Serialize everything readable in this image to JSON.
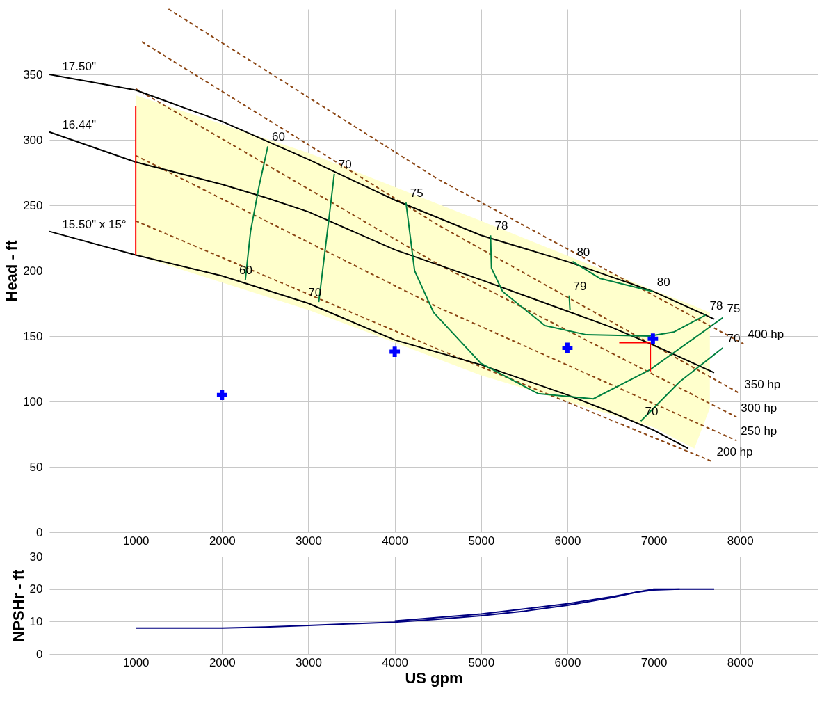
{
  "chart_data": [
    {
      "type": "line",
      "ylabel": "Head - ft",
      "xlim": [
        0,
        8900
      ],
      "ylim": [
        0,
        400
      ],
      "xticks": [
        1000,
        2000,
        3000,
        4000,
        5000,
        6000,
        7000,
        8000
      ],
      "yticks": [
        0,
        50,
        100,
        150,
        200,
        250,
        300,
        350
      ],
      "grid": true,
      "series": [
        {
          "color": "#ffffcc",
          "x": [
            1000,
            3000,
            5000,
            7000,
            7470,
            7650
          ],
          "values": [
            null,
            null,
            null,
            null,
            null,
            null
          ],
          "upper": [
            334,
            290,
            238,
            185,
            173,
            168
          ],
          "lower": [
            212,
            170,
            120,
            80,
            64,
            95
          ]
        },
        {
          "color": "#8b4513",
          "line_style": "dashed",
          "x": [
            1380,
            4500,
            8040
          ],
          "values": [
            400,
            270,
            144
          ]
        },
        {
          "color": "#8b4513",
          "line_style": "dashed",
          "x": [
            1070,
            4500,
            8000
          ],
          "values": [
            375,
            235,
            106
          ]
        },
        {
          "color": "#8b4513",
          "line_style": "dashed",
          "x": [
            1000,
            4500,
            7960
          ],
          "values": [
            339,
            205,
            88
          ]
        },
        {
          "color": "#8b4513",
          "line_style": "dashed",
          "x": [
            1000,
            4500,
            7960
          ],
          "values": [
            288,
            172,
            70
          ]
        },
        {
          "color": "#8b4513",
          "line_style": "dashed",
          "x": [
            1000,
            4500,
            7680
          ],
          "values": [
            238,
            140,
            54
          ]
        },
        {
          "color": "#000000",
          "x": [
            0,
            1000,
            2000,
            3000,
            4000,
            5000,
            6000,
            7000,
            7700
          ],
          "values": [
            350,
            338,
            314,
            285,
            254,
            227,
            207,
            184,
            163
          ]
        },
        {
          "color": "#000000",
          "x": [
            0,
            1000,
            2000,
            2500,
            3000,
            4000,
            5000,
            6000,
            6500,
            7000,
            7700
          ],
          "values": [
            306,
            283,
            266,
            256,
            245,
            216,
            193,
            169,
            157,
            143,
            122
          ]
        },
        {
          "color": "#000000",
          "x": [
            0,
            1000,
            2000,
            3000,
            4000,
            5000,
            6000,
            6500,
            7000,
            7400
          ],
          "values": [
            230,
            212,
            196,
            175,
            147,
            128,
            105,
            92,
            78,
            64
          ]
        },
        {
          "color": "#008040",
          "x": [
            2270,
            2330,
            2430,
            2530
          ],
          "values": [
            193,
            230,
            265,
            295
          ]
        },
        {
          "color": "#008040",
          "x": [
            3120,
            3220,
            3300
          ],
          "values": [
            176,
            230,
            274
          ]
        },
        {
          "color": "#008040",
          "x": [
            4130,
            4230,
            4450,
            5000,
            5660,
            6300,
            6950,
            7800
          ],
          "values": [
            252,
            200,
            168,
            129,
            106,
            102,
            124,
            164
          ]
        },
        {
          "color": "#008040",
          "x": [
            5110,
            5120,
            5250,
            5740,
            6220,
            6950,
            7230,
            7600
          ],
          "values": [
            227,
            202,
            184,
            158,
            151,
            150,
            153,
            166
          ]
        },
        {
          "color": "#008040",
          "x": [
            6060,
            6380,
            6990
          ],
          "values": [
            207,
            194,
            184
          ]
        },
        {
          "color": "#008040",
          "x": [
            6020,
            6030
          ],
          "values": [
            181,
            170
          ]
        },
        {
          "color": "#008040",
          "x": [
            6850,
            7300,
            7800
          ],
          "values": [
            85,
            115,
            141
          ]
        },
        {
          "color": "#ff0000",
          "x": [
            1000,
            1000
          ],
          "values": [
            212,
            326
          ]
        },
        {
          "color": "#ff0000",
          "x": [
            6600,
            6960
          ],
          "values": [
            145,
            145
          ]
        },
        {
          "color": "#ff0000",
          "x": [
            6960,
            6960
          ],
          "values": [
            145,
            123
          ]
        },
        {
          "type": "scatter",
          "marker": "cross",
          "color": "#0000ff",
          "x": [
            2000,
            4000,
            6000,
            6990
          ],
          "values": [
            105,
            138,
            141,
            148
          ]
        }
      ],
      "annotations": [
        {
          "text": "17.50\"",
          "x": 100,
          "y": 349
        },
        {
          "text": "16.44\"",
          "x": 100,
          "y": 304
        },
        {
          "text": "15.50\" x 15°",
          "x": 100,
          "y": 228
        },
        {
          "text": "60",
          "x": 2530,
          "y": 295
        },
        {
          "text": "60",
          "x": 2150,
          "y": 193
        },
        {
          "text": "70",
          "x": 3300,
          "y": 274
        },
        {
          "text": "70",
          "x": 2950,
          "y": 176
        },
        {
          "text": "75",
          "x": 4130,
          "y": 252
        },
        {
          "text": "78",
          "x": 5110,
          "y": 227
        },
        {
          "text": "80",
          "x": 6060,
          "y": 207
        },
        {
          "text": "79",
          "x": 6020,
          "y": 181
        },
        {
          "text": "80",
          "x": 6990,
          "y": 184
        },
        {
          "text": "78",
          "x": 7600,
          "y": 166
        },
        {
          "text": "75",
          "x": 7800,
          "y": 164
        },
        {
          "text": "70",
          "x": 7800,
          "y": 141
        },
        {
          "text": "70",
          "x": 6850,
          "y": 85
        },
        {
          "text": "400 hp",
          "x": 8040,
          "y": 144
        },
        {
          "text": "350 hp",
          "x": 8000,
          "y": 106
        },
        {
          "text": "300 hp",
          "x": 7960,
          "y": 88
        },
        {
          "text": "250 hp",
          "x": 7960,
          "y": 70
        },
        {
          "text": "200 hp",
          "x": 7680,
          "y": 54
        }
      ]
    },
    {
      "type": "line",
      "xlabel": "US gpm",
      "ylabel": "NPSHr - ft",
      "xlim": [
        0,
        8900
      ],
      "ylim": [
        0,
        30
      ],
      "xticks": [
        1000,
        2000,
        3000,
        4000,
        5000,
        6000,
        7000,
        8000
      ],
      "yticks": [
        0,
        10,
        20,
        30
      ],
      "grid": true,
      "series": [
        {
          "color": "#000080",
          "x": [
            1000,
            1500,
            2000,
            2500,
            3000,
            3500,
            4000,
            4500,
            5000,
            5500,
            6000,
            6500,
            6800,
            7000,
            7300,
            7700
          ],
          "values": [
            8,
            8,
            8,
            8.3,
            8.8,
            9.3,
            9.8,
            10.7,
            11.8,
            13.2,
            15,
            17.3,
            19,
            19.7,
            20,
            20
          ]
        },
        {
          "color": "#000080",
          "x": [
            4000,
            5000,
            6000,
            6500,
            7000,
            7300
          ],
          "values": [
            10.2,
            12.3,
            15.5,
            17.6,
            20,
            20
          ]
        }
      ]
    }
  ]
}
